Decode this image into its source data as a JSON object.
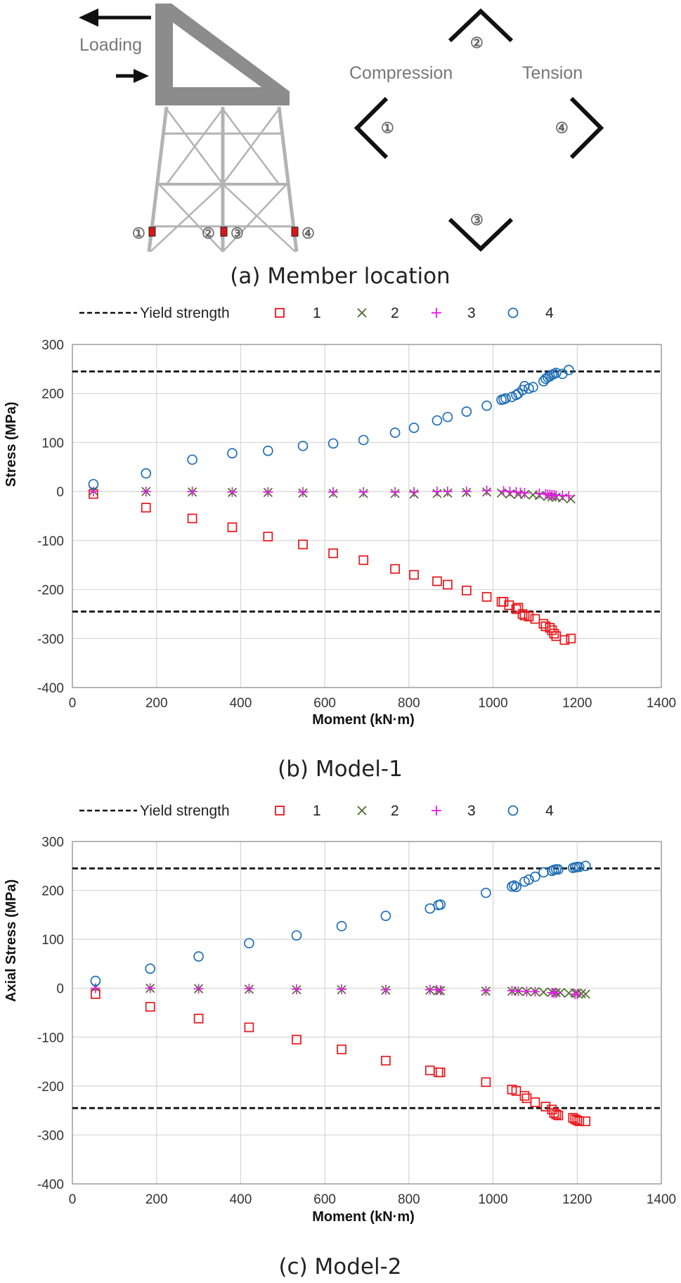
{
  "panel_a": {
    "caption": "(a) Member location",
    "loading_label": "Loading",
    "compression_label": "Compression",
    "tension_label": "Tension",
    "member_markers": [
      "①",
      "②",
      "③",
      "④"
    ]
  },
  "colors": {
    "yield": "#111111",
    "s1": "#e8161b",
    "s2": "#4d6b2a",
    "s3": "#e51be8",
    "s4": "#1f6fb8",
    "grid": "#d6d6d6",
    "frame": "#9a9a9a",
    "marker_red": "#d81818"
  },
  "chart_data": [
    {
      "id": "model1",
      "type": "scatter",
      "caption": "(b) Model-1",
      "xlabel": "Moment (kN·m)",
      "ylabel": "Stress (MPa)",
      "xlim": [
        0,
        1400
      ],
      "ylim": [
        -400,
        300
      ],
      "xticks": [
        0,
        200,
        400,
        600,
        800,
        1000,
        1200,
        1400
      ],
      "yticks": [
        300,
        200,
        100,
        0,
        -100,
        -200,
        -300,
        -400
      ],
      "grid": true,
      "legend_position": "top",
      "yield_strength": 245,
      "legend": [
        "Yield strength",
        "1",
        "2",
        "3",
        "4"
      ],
      "series": [
        {
          "name": "1",
          "marker": "square",
          "x": [
            50,
            175,
            285,
            380,
            465,
            548,
            620,
            692,
            767,
            812,
            867,
            892,
            937,
            985,
            1020,
            1025,
            1038,
            1055,
            1060,
            1070,
            1075,
            1085,
            1100,
            1120,
            1125,
            1135,
            1140,
            1145,
            1150,
            1170,
            1185
          ],
          "y": [
            -5,
            -33,
            -55,
            -73,
            -92,
            -108,
            -126,
            -140,
            -158,
            -170,
            -183,
            -190,
            -202,
            -215,
            -225,
            -225,
            -232,
            -240,
            -237,
            -250,
            -253,
            -255,
            -260,
            -270,
            -275,
            -278,
            -283,
            -290,
            -295,
            -303,
            -300
          ]
        },
        {
          "name": "2",
          "marker": "x",
          "x": [
            50,
            175,
            285,
            380,
            465,
            548,
            620,
            692,
            767,
            812,
            867,
            892,
            937,
            985,
            1020,
            1040,
            1060,
            1075,
            1095,
            1110,
            1130,
            1140,
            1150,
            1165,
            1185
          ],
          "y": [
            1,
            0,
            -1,
            -2,
            -2,
            -3,
            -4,
            -4,
            -4,
            -5,
            -4,
            -3,
            -2,
            -1,
            -3,
            -5,
            -6,
            -6,
            -7,
            -8,
            -10,
            -11,
            -12,
            -13,
            -15
          ]
        },
        {
          "name": "3",
          "marker": "plus",
          "x": [
            50,
            175,
            285,
            380,
            465,
            548,
            620,
            692,
            767,
            812,
            867,
            892,
            937,
            985,
            1025,
            1040,
            1055,
            1065,
            1075,
            1110,
            1125,
            1130,
            1135,
            1140,
            1145,
            1150,
            1165,
            1180
          ],
          "y": [
            0,
            0,
            0,
            -1,
            -1,
            -1,
            -1,
            -1,
            -1,
            -1,
            0,
            0,
            0,
            2,
            1,
            0,
            -1,
            -2,
            -3,
            -4,
            -5,
            -6,
            -6,
            -7,
            -7,
            -8,
            -8,
            -9
          ]
        },
        {
          "name": "4",
          "marker": "circle",
          "x": [
            50,
            175,
            285,
            380,
            465,
            548,
            620,
            692,
            767,
            812,
            867,
            892,
            937,
            985,
            1020,
            1025,
            1030,
            1045,
            1055,
            1060,
            1070,
            1075,
            1085,
            1095,
            1120,
            1125,
            1130,
            1135,
            1140,
            1145,
            1150,
            1165,
            1180
          ],
          "y": [
            15,
            37,
            65,
            78,
            83,
            93,
            98,
            105,
            120,
            130,
            145,
            152,
            163,
            175,
            187,
            188,
            190,
            193,
            197,
            200,
            207,
            215,
            210,
            213,
            225,
            230,
            233,
            235,
            238,
            240,
            242,
            240,
            248
          ]
        }
      ]
    },
    {
      "id": "model2",
      "type": "scatter",
      "caption": "(c) Model-2",
      "xlabel": "Moment (kN·m)",
      "ylabel": "Axial Stress (MPa)",
      "xlim": [
        0,
        1400
      ],
      "ylim": [
        -400,
        300
      ],
      "xticks": [
        0,
        200,
        400,
        600,
        800,
        1000,
        1200,
        1400
      ],
      "yticks": [
        300,
        200,
        100,
        0,
        -100,
        -200,
        -300,
        -400
      ],
      "grid": true,
      "legend_position": "top",
      "yield_strength": 245,
      "legend": [
        "Yield strength",
        "1",
        "2",
        "3",
        "4"
      ],
      "series": [
        {
          "name": "1",
          "marker": "square",
          "x": [
            55,
            185,
            300,
            420,
            533,
            640,
            745,
            850,
            870,
            875,
            983,
            1045,
            1055,
            1075,
            1080,
            1100,
            1125,
            1140,
            1145,
            1150,
            1155,
            1190,
            1195,
            1200,
            1205,
            1220
          ],
          "y": [
            -12,
            -38,
            -62,
            -80,
            -105,
            -125,
            -148,
            -168,
            -172,
            -172,
            -192,
            -207,
            -210,
            -220,
            -225,
            -233,
            -242,
            -248,
            -255,
            -258,
            -260,
            -265,
            -268,
            -270,
            -272,
            -272
          ]
        },
        {
          "name": "2",
          "marker": "x",
          "x": [
            55,
            185,
            300,
            420,
            533,
            640,
            745,
            850,
            870,
            875,
            983,
            1045,
            1060,
            1080,
            1100,
            1120,
            1140,
            1150,
            1160,
            1180,
            1195,
            1200,
            1210,
            1220
          ],
          "y": [
            2,
            0,
            -1,
            -2,
            -3,
            -3,
            -4,
            -4,
            -5,
            -5,
            -6,
            -6,
            -6,
            -7,
            -7,
            -8,
            -8,
            -9,
            -9,
            -10,
            -10,
            -10,
            -11,
            -12
          ]
        },
        {
          "name": "3",
          "marker": "plus",
          "x": [
            55,
            185,
            300,
            420,
            533,
            640,
            745,
            850,
            865,
            875,
            983,
            1045,
            1060,
            1080,
            1100,
            1140,
            1145,
            1150,
            1195,
            1200
          ],
          "y": [
            0,
            0,
            -1,
            -1,
            -2,
            -2,
            -3,
            -3,
            -3,
            -4,
            -5,
            -5,
            -6,
            -7,
            -7,
            -9,
            -10,
            -10,
            -12,
            -12
          ]
        },
        {
          "name": "4",
          "marker": "circle",
          "x": [
            55,
            185,
            300,
            420,
            533,
            640,
            745,
            850,
            870,
            875,
            983,
            1045,
            1050,
            1055,
            1075,
            1085,
            1100,
            1120,
            1140,
            1145,
            1150,
            1155,
            1190,
            1195,
            1200,
            1205,
            1220
          ],
          "y": [
            15,
            40,
            65,
            92,
            108,
            127,
            148,
            163,
            170,
            171,
            195,
            208,
            210,
            207,
            218,
            222,
            228,
            237,
            240,
            242,
            243,
            243,
            246,
            247,
            248,
            248,
            250
          ]
        }
      ]
    }
  ]
}
